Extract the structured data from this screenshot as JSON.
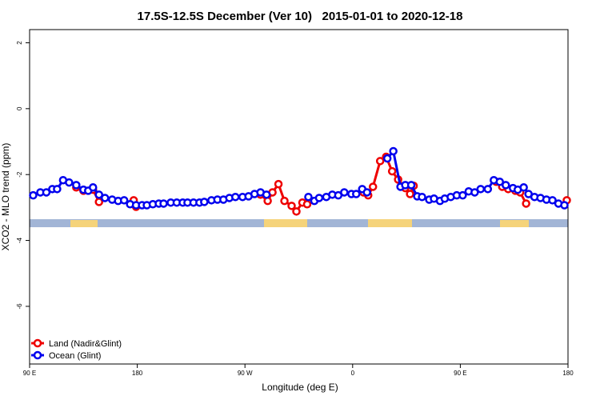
{
  "chart_data": {
    "type": "line",
    "title": "17.5S-12.5S December (Ver 10)   2015-01-01 to 2020-12-18",
    "x_label": "Longitude (deg E)",
    "y_label": "XCO2 - MLO trend (ppm)",
    "xlim": [
      90,
      540
    ],
    "ylim": [
      -7.75,
      2.4
    ],
    "xticks": [
      {
        "value": 90,
        "label": "90 E"
      },
      180,
      {
        "value": 270,
        "label": "90 W"
      },
      {
        "value": 360,
        "label": "0"
      },
      {
        "value": 450,
        "label": "90 E"
      },
      {
        "value": 540,
        "label": "180"
      }
    ],
    "yticks": [
      2,
      0,
      -2,
      -4,
      -6
    ],
    "legend": "bottom-left",
    "series": [
      {
        "name": "Land (Nadir&Glint)",
        "color": "#ee0000",
        "x": [
          129,
          135,
          143,
          148,
          null,
          177,
          179,
          null,
          283,
          289,
          293,
          298,
          303,
          309,
          313,
          318,
          322,
          null,
          369,
          373,
          377,
          383,
          388,
          393,
          398,
          404,
          408,
          411,
          null,
          480,
          485,
          490,
          496,
          500,
          505,
          null,
          539
        ],
        "values": [
          -2.39,
          -2.49,
          -2.46,
          -2.83,
          null,
          -2.78,
          -2.98,
          null,
          -2.61,
          -2.8,
          -2.54,
          -2.29,
          -2.8,
          -2.95,
          -3.12,
          -2.85,
          -2.9,
          null,
          -2.54,
          -2.63,
          -2.37,
          -1.59,
          -1.46,
          -1.9,
          -2.15,
          -2.41,
          -2.59,
          -2.34,
          null,
          -2.22,
          -2.37,
          -2.44,
          -2.49,
          -2.54,
          -2.88,
          null,
          -2.78
        ]
      },
      {
        "name": "Ocean (Glint)",
        "color": "#0000ee",
        "x": [
          93,
          99,
          104,
          109,
          113,
          118,
          123,
          129,
          135,
          139,
          143,
          148,
          153,
          159,
          164,
          169,
          174,
          179,
          184,
          188,
          193,
          198,
          202,
          208,
          213,
          218,
          222,
          227,
          232,
          236,
          242,
          247,
          252,
          257,
          262,
          268,
          273,
          278,
          283,
          288,
          null,
          323,
          328,
          332,
          338,
          343,
          348,
          353,
          359,
          363,
          368,
          372,
          null,
          389,
          394,
          400,
          404,
          409,
          414,
          418,
          424,
          428,
          433,
          437,
          442,
          447,
          452,
          457,
          462,
          467,
          473,
          478,
          483,
          488,
          494,
          498,
          503,
          507,
          512,
          517,
          522,
          527,
          532,
          537
        ],
        "values": [
          -2.63,
          -2.54,
          -2.54,
          -2.44,
          -2.44,
          -2.17,
          -2.24,
          -2.32,
          -2.46,
          -2.49,
          -2.39,
          -2.61,
          -2.71,
          -2.76,
          -2.8,
          -2.78,
          -2.9,
          -2.93,
          -2.93,
          -2.93,
          -2.9,
          -2.88,
          -2.88,
          -2.85,
          -2.85,
          -2.85,
          -2.85,
          -2.85,
          -2.85,
          -2.83,
          -2.78,
          -2.76,
          -2.76,
          -2.71,
          -2.68,
          -2.68,
          -2.66,
          -2.59,
          -2.54,
          -2.61,
          null,
          -2.68,
          -2.8,
          -2.71,
          -2.68,
          -2.61,
          -2.63,
          -2.54,
          -2.59,
          -2.59,
          -2.44,
          -2.54,
          null,
          -1.51,
          -1.29,
          -2.37,
          -2.32,
          -2.32,
          -2.66,
          -2.68,
          -2.76,
          -2.73,
          -2.8,
          -2.73,
          -2.68,
          -2.63,
          -2.63,
          -2.51,
          -2.54,
          -2.44,
          -2.44,
          -2.17,
          -2.22,
          -2.32,
          -2.41,
          -2.46,
          -2.39,
          -2.59,
          -2.68,
          -2.71,
          -2.76,
          -2.78,
          -2.88,
          -2.93
        ]
      }
    ]
  }
}
